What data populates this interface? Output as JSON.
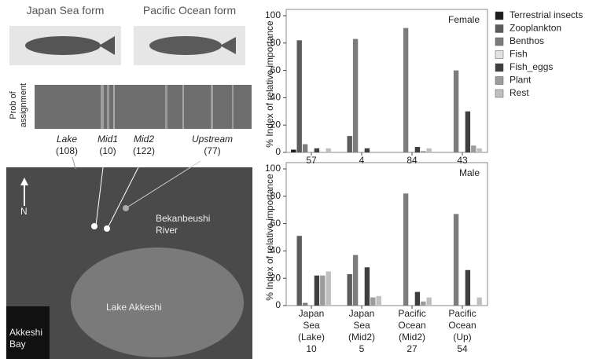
{
  "figure": {
    "photos": [
      "Japan Sea form",
      "Pacific Ocean form"
    ],
    "assignment": {
      "ylabel": "Prob of\nassignment",
      "sites": [
        {
          "name": "Lake",
          "n": "(108)"
        },
        {
          "name": "Mid1",
          "n": "(10)"
        },
        {
          "name": "Mid2",
          "n": "(122)"
        },
        {
          "name": "Upstream",
          "n": "(77)"
        }
      ]
    },
    "map": {
      "north": "N",
      "labels": [
        "Bekanbeushi\nRiver",
        "Lake Akkeshi",
        "Akkeshi\nBay"
      ]
    }
  },
  "chart_data": [
    {
      "type": "bar",
      "title": "Female",
      "ylabel": "% Index of relative importance",
      "categories": [
        "57",
        "4",
        "84",
        "43"
      ],
      "series": [
        {
          "name": "Terrestrial insects",
          "color": "#1c1c1c",
          "values": [
            2,
            0,
            0,
            0
          ]
        },
        {
          "name": "Zooplankton",
          "color": "#5c5c5c",
          "values": [
            82,
            12,
            0,
            0
          ]
        },
        {
          "name": "Benthos",
          "color": "#7c7c7c",
          "values": [
            6,
            83,
            91,
            60
          ]
        },
        {
          "name": "Fish",
          "color": "#e2e2e2",
          "values": [
            0,
            0,
            0,
            0
          ]
        },
        {
          "name": "Fish_eggs",
          "color": "#3e3e3e",
          "values": [
            3,
            3,
            4,
            30
          ]
        },
        {
          "name": "Plant",
          "color": "#9c9c9c",
          "values": [
            0,
            0,
            1,
            5
          ]
        },
        {
          "name": "Rest",
          "color": "#c0c0c0",
          "values": [
            3,
            0,
            3,
            3
          ]
        }
      ],
      "ylim": [
        0,
        100
      ],
      "yticks": [
        0,
        20,
        40,
        60,
        80,
        100
      ],
      "legend": "outside-right"
    },
    {
      "type": "bar",
      "title": "Male",
      "ylabel": "% Index of relative importance",
      "categories": [
        "Japan\nSea\n(Lake)\n10",
        "Japan\nSea\n(Mid2)\n5",
        "Pacific\nOcean\n(Mid2)\n27",
        "Pacific\nOcean\n(Up)\n54"
      ],
      "series": [
        {
          "name": "Terrestrial insects",
          "color": "#1c1c1c",
          "values": [
            0,
            0,
            0,
            0
          ]
        },
        {
          "name": "Zooplankton",
          "color": "#5c5c5c",
          "values": [
            51,
            23,
            0,
            0
          ]
        },
        {
          "name": "Benthos",
          "color": "#7c7c7c",
          "values": [
            2,
            37,
            82,
            67
          ]
        },
        {
          "name": "Fish",
          "color": "#e2e2e2",
          "values": [
            0,
            0,
            0,
            0
          ]
        },
        {
          "name": "Fish_eggs",
          "color": "#3e3e3e",
          "values": [
            22,
            28,
            10,
            26
          ]
        },
        {
          "name": "Plant",
          "color": "#9c9c9c",
          "values": [
            22,
            6,
            3,
            0
          ]
        },
        {
          "name": "Rest",
          "color": "#c0c0c0",
          "values": [
            25,
            7,
            6,
            6
          ]
        }
      ],
      "ylim": [
        0,
        100
      ],
      "yticks": [
        0,
        20,
        40,
        60,
        80,
        100
      ]
    }
  ]
}
